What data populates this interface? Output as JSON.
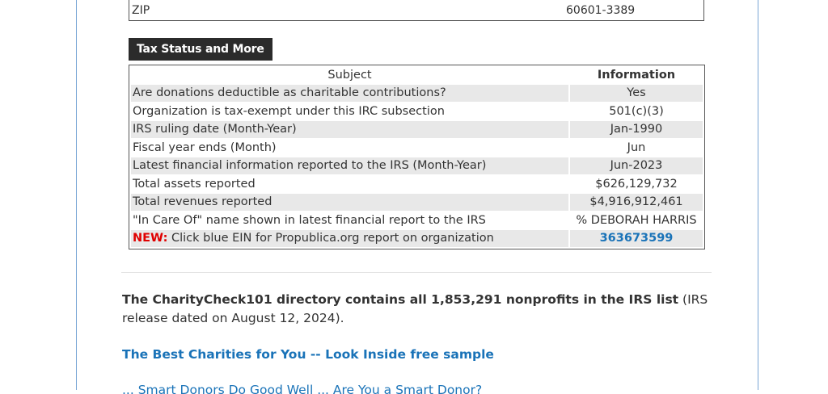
{
  "zip_row": {
    "label": "ZIP",
    "value": "60601-3389"
  },
  "section": {
    "title": "Tax Status and More"
  },
  "table": {
    "headers": [
      "Subject",
      "Information"
    ],
    "rows": [
      {
        "subject": "Are donations deductible as charitable contributions?",
        "info": "Yes"
      },
      {
        "subject": "Organization is tax-exempt under this IRC subsection",
        "info": "501(c)(3)"
      },
      {
        "subject": "IRS ruling date (Month-Year)",
        "info": "Jan-1990"
      },
      {
        "subject": "Fiscal year ends (Month)",
        "info": "Jun"
      },
      {
        "subject": "Latest financial information reported to the IRS (Month-Year)",
        "info": "Jun-2023"
      },
      {
        "subject": "Total assets reported",
        "info": "$626,129,732"
      },
      {
        "subject": "Total revenues reported",
        "info": "$4,916,912,461"
      },
      {
        "subject": "\"In Care Of\" name shown in latest financial report to the IRS",
        "info": "% DEBORAH HARRIS"
      }
    ],
    "new_row": {
      "tag": "NEW:",
      "text": " Click blue EIN for Propublica.org report on organization",
      "ein": "363673599"
    }
  },
  "directory": {
    "bold": "The CharityCheck101 directory contains all 1,853,291 nonprofits in the IRS list",
    "rest": " (IRS release dated on August 12, 2024)."
  },
  "links": {
    "best_charities": "The Best Charities for You -- Look Inside free sample",
    "cutoff": "... Smart Donors Do Good Well ... Are You a Smart Donor?"
  }
}
